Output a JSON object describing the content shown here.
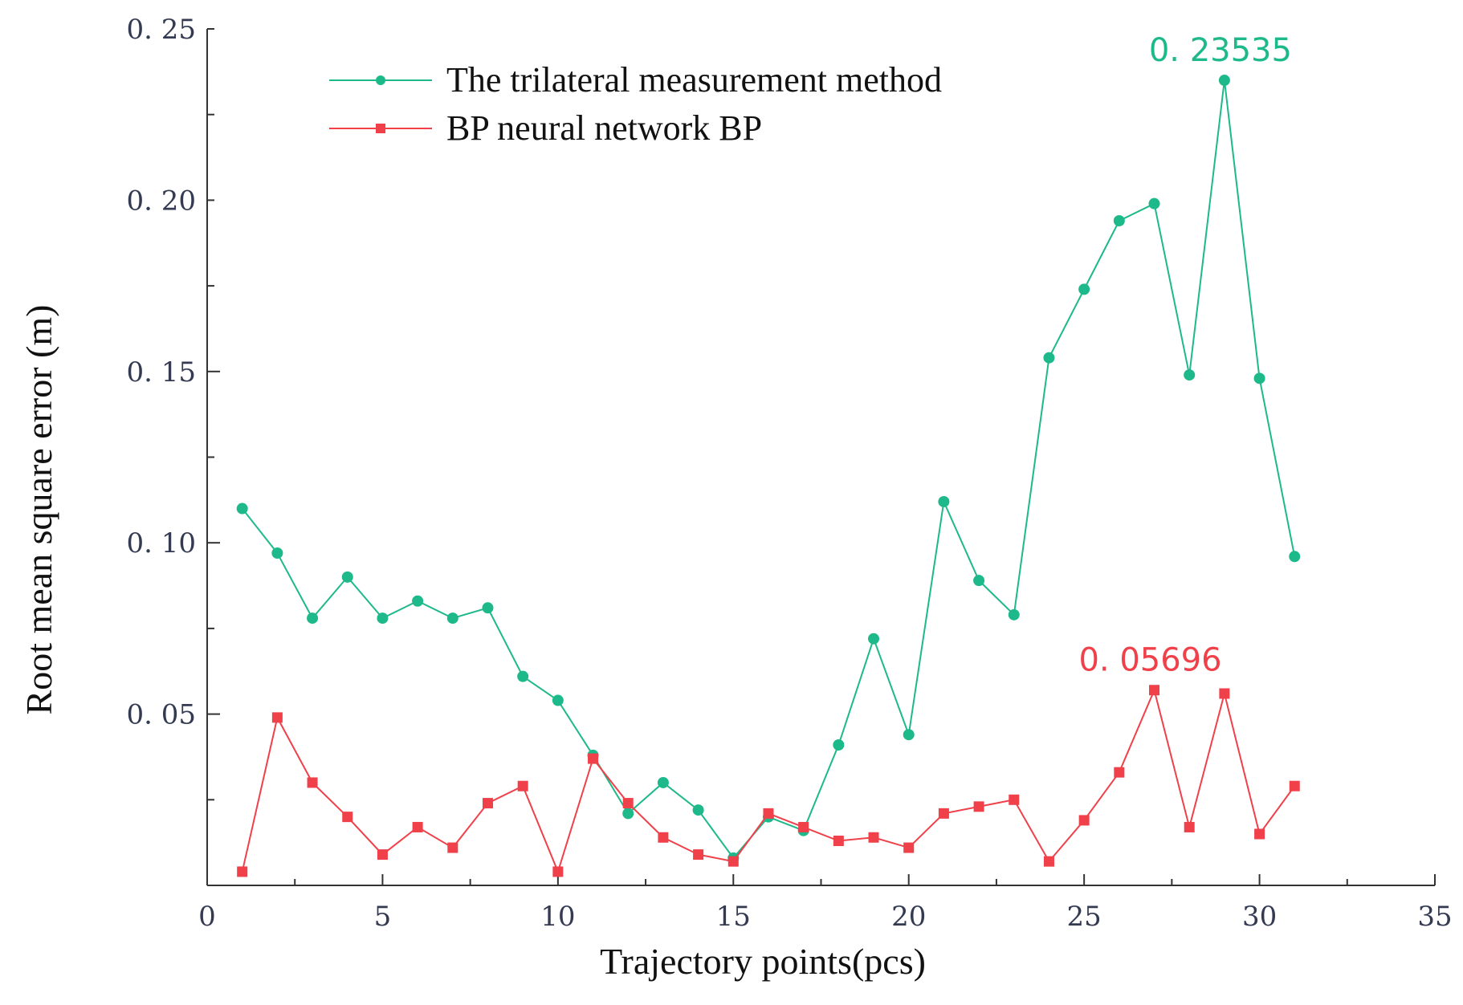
{
  "chart_data": {
    "type": "line",
    "xlabel": "Trajectory points(pcs)",
    "ylabel": "Root mean square error (m)",
    "xlim": [
      0,
      35
    ],
    "ylim": [
      0,
      0.25
    ],
    "x_ticks": [
      0,
      5,
      10,
      15,
      20,
      25,
      30,
      35
    ],
    "x_tick_labels": [
      "0",
      "5",
      "10",
      "15",
      "20",
      "25",
      "30",
      "35"
    ],
    "y_ticks": [
      0.05,
      0.1,
      0.15,
      0.2,
      0.25
    ],
    "y_tick_labels": [
      "0. 05",
      "0. 10",
      "0. 15",
      "0. 20",
      "0. 25"
    ],
    "grid": false,
    "legend_position": "top-left",
    "x": [
      1,
      2,
      3,
      4,
      5,
      6,
      7,
      8,
      9,
      10,
      11,
      12,
      13,
      14,
      15,
      16,
      17,
      18,
      19,
      20,
      21,
      22,
      23,
      24,
      25,
      26,
      27,
      28,
      29,
      30,
      31
    ],
    "series": [
      {
        "name": "The trilateral measurement method",
        "color": "#1db98a",
        "marker": "circle",
        "values": [
          0.11,
          0.097,
          0.078,
          0.09,
          0.078,
          0.083,
          0.078,
          0.081,
          0.061,
          0.054,
          0.038,
          0.021,
          0.03,
          0.022,
          0.008,
          0.02,
          0.016,
          0.041,
          0.072,
          0.044,
          0.112,
          0.089,
          0.079,
          0.154,
          0.174,
          0.194,
          0.199,
          0.149,
          0.235,
          0.148,
          0.096
        ]
      },
      {
        "name": "BP neural network BP",
        "color": "#f0404a",
        "marker": "square",
        "values": [
          0.004,
          0.049,
          0.03,
          0.02,
          0.009,
          0.017,
          0.011,
          0.024,
          0.029,
          0.004,
          0.037,
          0.024,
          0.014,
          0.009,
          0.007,
          0.021,
          0.017,
          0.013,
          0.014,
          0.011,
          0.021,
          0.023,
          0.025,
          0.007,
          0.019,
          0.033,
          0.057,
          0.017,
          0.056,
          0.015,
          0.029
        ]
      }
    ],
    "annotations": [
      {
        "text": "0. 23535",
        "series": 0,
        "x": 29,
        "y": 0.235,
        "color": "#1db98a"
      },
      {
        "text": "0. 05696",
        "series": 1,
        "x": 27,
        "y": 0.057,
        "color": "#f0404a"
      }
    ]
  }
}
